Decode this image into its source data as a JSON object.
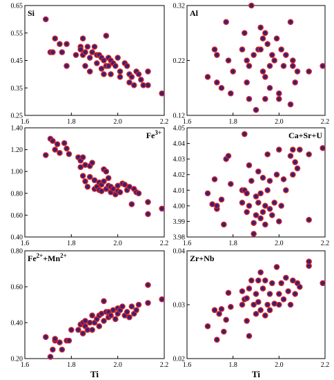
{
  "chart_data": [
    {
      "type": "scatter",
      "name": "Si",
      "label_main": "Si",
      "label_sup": "",
      "label_pos": "top-left",
      "xlim": [
        1.6,
        2.2
      ],
      "ylim": [
        0.25,
        0.65
      ],
      "xticks": [
        "1.6",
        "1.8",
        "2.0",
        "2.2"
      ],
      "yticks": [
        "0.25",
        "0.35",
        "0.45",
        "0.55",
        "0.65"
      ],
      "ytick_values": [
        0.25,
        0.35,
        0.45,
        0.55,
        0.65
      ],
      "xlabel": "",
      "points": [
        [
          1.69,
          0.6
        ],
        [
          1.71,
          0.48
        ],
        [
          1.72,
          0.48
        ],
        [
          1.73,
          0.53
        ],
        [
          1.75,
          0.51
        ],
        [
          1.76,
          0.48
        ],
        [
          1.78,
          0.43
        ],
        [
          1.78,
          0.51
        ],
        [
          1.82,
          0.47
        ],
        [
          1.84,
          0.5
        ],
        [
          1.84,
          0.49
        ],
        [
          1.85,
          0.47
        ],
        [
          1.85,
          0.53
        ],
        [
          1.86,
          0.48
        ],
        [
          1.86,
          0.43
        ],
        [
          1.87,
          0.5
        ],
        [
          1.88,
          0.46
        ],
        [
          1.88,
          0.41
        ],
        [
          1.89,
          0.48
        ],
        [
          1.9,
          0.5
        ],
        [
          1.91,
          0.47
        ],
        [
          1.91,
          0.44
        ],
        [
          1.92,
          0.47
        ],
        [
          1.93,
          0.46
        ],
        [
          1.93,
          0.42
        ],
        [
          1.94,
          0.45
        ],
        [
          1.94,
          0.4
        ],
        [
          1.95,
          0.54
        ],
        [
          1.95,
          0.43
        ],
        [
          1.96,
          0.46
        ],
        [
          1.96,
          0.43
        ],
        [
          1.97,
          0.45
        ],
        [
          1.97,
          0.4
        ],
        [
          1.98,
          0.44
        ],
        [
          1.99,
          0.43
        ],
        [
          2.0,
          0.46
        ],
        [
          2.01,
          0.41
        ],
        [
          2.01,
          0.39
        ],
        [
          2.03,
          0.44
        ],
        [
          2.04,
          0.43
        ],
        [
          2.05,
          0.4
        ],
        [
          2.05,
          0.37
        ],
        [
          2.06,
          0.39
        ],
        [
          2.07,
          0.36
        ],
        [
          2.08,
          0.41
        ],
        [
          2.09,
          0.4
        ],
        [
          2.1,
          0.38
        ],
        [
          2.11,
          0.36
        ],
        [
          2.13,
          0.41
        ],
        [
          2.13,
          0.36
        ],
        [
          2.19,
          0.33
        ]
      ]
    },
    {
      "type": "scatter",
      "name": "Al",
      "label_main": "Al",
      "label_sup": "",
      "label_pos": "top-left",
      "xlim": [
        1.6,
        2.2
      ],
      "ylim": [
        0.12,
        0.32
      ],
      "xticks": [
        "1.6",
        "1.8",
        "2.0",
        "2.2"
      ],
      "yticks": [
        "0.12",
        "0.22",
        "0.32"
      ],
      "ytick_values": [
        0.12,
        0.22,
        0.32
      ],
      "xlabel": "",
      "points": [
        [
          1.69,
          0.19
        ],
        [
          1.72,
          0.24
        ],
        [
          1.73,
          0.23
        ],
        [
          1.73,
          0.18
        ],
        [
          1.75,
          0.17
        ],
        [
          1.77,
          0.29
        ],
        [
          1.78,
          0.22
        ],
        [
          1.79,
          0.16
        ],
        [
          1.8,
          0.2
        ],
        [
          1.84,
          0.24
        ],
        [
          1.85,
          0.27
        ],
        [
          1.86,
          0.22
        ],
        [
          1.86,
          0.18
        ],
        [
          1.87,
          0.21
        ],
        [
          1.87,
          0.15
        ],
        [
          1.88,
          0.32
        ],
        [
          1.89,
          0.23
        ],
        [
          1.9,
          0.13
        ],
        [
          1.91,
          0.24
        ],
        [
          1.92,
          0.28
        ],
        [
          1.92,
          0.24
        ],
        [
          1.93,
          0.26
        ],
        [
          1.93,
          0.2
        ],
        [
          1.94,
          0.27
        ],
        [
          1.94,
          0.19
        ],
        [
          1.94,
          0.15
        ],
        [
          1.95,
          0.25
        ],
        [
          1.96,
          0.21
        ],
        [
          1.96,
          0.17
        ],
        [
          1.97,
          0.23
        ],
        [
          1.98,
          0.22
        ],
        [
          1.99,
          0.26
        ],
        [
          2.0,
          0.16
        ],
        [
          2.0,
          0.15
        ],
        [
          2.01,
          0.24
        ],
        [
          2.02,
          0.21
        ],
        [
          2.03,
          0.23
        ],
        [
          2.05,
          0.14
        ],
        [
          2.05,
          0.29
        ],
        [
          2.06,
          0.22
        ],
        [
          2.06,
          0.21
        ],
        [
          2.07,
          0.18
        ],
        [
          2.08,
          0.2
        ],
        [
          2.13,
          0.2
        ],
        [
          2.19,
          0.21
        ]
      ]
    },
    {
      "type": "scatter",
      "name": "Fe3+",
      "label_main": "Fe",
      "label_sup": "3+",
      "label_pos": "top-right",
      "xlim": [
        1.6,
        2.2
      ],
      "ylim": [
        0.4,
        1.4
      ],
      "xticks": [
        "1.6",
        "1.8",
        "2.0",
        "2.2"
      ],
      "yticks": [
        "0.40",
        "0.60",
        "0.80",
        "1.00",
        "1.20",
        "1.40"
      ],
      "ytick_values": [
        0.4,
        0.6,
        0.8,
        1.0,
        1.2,
        1.4
      ],
      "xlabel": "",
      "points": [
        [
          1.69,
          1.15
        ],
        [
          1.71,
          1.3
        ],
        [
          1.72,
          1.28
        ],
        [
          1.73,
          1.2
        ],
        [
          1.74,
          1.25
        ],
        [
          1.75,
          1.17
        ],
        [
          1.77,
          1.26
        ],
        [
          1.78,
          1.21
        ],
        [
          1.79,
          1.16
        ],
        [
          1.83,
          1.13
        ],
        [
          1.84,
          1.1
        ],
        [
          1.84,
          1.04
        ],
        [
          1.85,
          1.13
        ],
        [
          1.85,
          0.96
        ],
        [
          1.86,
          1.06
        ],
        [
          1.86,
          0.91
        ],
        [
          1.87,
          0.86
        ],
        [
          1.88,
          1.05
        ],
        [
          1.88,
          0.95
        ],
        [
          1.89,
          1.08
        ],
        [
          1.9,
          0.92
        ],
        [
          1.9,
          0.84
        ],
        [
          1.91,
          0.86
        ],
        [
          1.92,
          0.9
        ],
        [
          1.92,
          0.83
        ],
        [
          1.93,
          0.88
        ],
        [
          1.93,
          0.82
        ],
        [
          1.94,
          1.02
        ],
        [
          1.94,
          0.91
        ],
        [
          1.95,
          1.0
        ],
        [
          1.95,
          0.84
        ],
        [
          1.96,
          0.94
        ],
        [
          1.96,
          0.87
        ],
        [
          1.97,
          0.86
        ],
        [
          1.97,
          0.81
        ],
        [
          1.98,
          0.84
        ],
        [
          1.99,
          0.79
        ],
        [
          2.0,
          0.87
        ],
        [
          2.0,
          0.82
        ],
        [
          2.01,
          0.81
        ],
        [
          2.02,
          0.89
        ],
        [
          2.03,
          0.88
        ],
        [
          2.04,
          0.83
        ],
        [
          2.05,
          0.86
        ],
        [
          2.06,
          0.7
        ],
        [
          2.07,
          0.84
        ],
        [
          2.08,
          0.81
        ],
        [
          2.09,
          0.8
        ],
        [
          2.13,
          0.72
        ],
        [
          2.13,
          0.61
        ],
        [
          2.19,
          0.66
        ]
      ]
    },
    {
      "type": "scatter",
      "name": "Ca+Sr+U",
      "label_main": "Ca+Sr+U",
      "label_sup": "",
      "label_pos": "top-right",
      "xlim": [
        1.6,
        2.2
      ],
      "ylim": [
        3.98,
        4.05
      ],
      "xticks": [
        "1.6",
        "1.8",
        "2.0",
        "2.2"
      ],
      "yticks": [
        "3.98",
        "3.99",
        "4.00",
        "4.01",
        "4.02",
        "4.03",
        "4.04",
        "4.05"
      ],
      "ytick_values": [
        3.98,
        3.99,
        4.0,
        4.01,
        4.02,
        4.03,
        4.04,
        4.05
      ],
      "xlabel": "",
      "points": [
        [
          1.69,
          4.008
        ],
        [
          1.71,
          4.001
        ],
        [
          1.72,
          4.017
        ],
        [
          1.73,
          3.998
        ],
        [
          1.73,
          4.0
        ],
        [
          1.75,
          4.004
        ],
        [
          1.76,
          3.988
        ],
        [
          1.77,
          4.03
        ],
        [
          1.78,
          4.032
        ],
        [
          1.79,
          4.014
        ],
        [
          1.84,
          4.01
        ],
        [
          1.84,
          4.002
        ],
        [
          1.85,
          4.046
        ],
        [
          1.85,
          4.01
        ],
        [
          1.86,
          4.008
        ],
        [
          1.86,
          3.996
        ],
        [
          1.87,
          4.0
        ],
        [
          1.87,
          4.026
        ],
        [
          1.88,
          4.016
        ],
        [
          1.89,
          3.982
        ],
        [
          1.89,
          3.989
        ],
        [
          1.9,
          4.006
        ],
        [
          1.9,
          3.994
        ],
        [
          1.91,
          4.022
        ],
        [
          1.91,
          4.002
        ],
        [
          1.92,
          4.008
        ],
        [
          1.92,
          3.992
        ],
        [
          1.93,
          3.996
        ],
        [
          1.93,
          4.018
        ],
        [
          1.94,
          4.0
        ],
        [
          1.94,
          3.988
        ],
        [
          1.95,
          4.033
        ],
        [
          1.95,
          4.01
        ],
        [
          1.96,
          3.998
        ],
        [
          1.96,
          4.016
        ],
        [
          1.97,
          3.994
        ],
        [
          1.98,
          4.002
        ],
        [
          1.99,
          4.02
        ],
        [
          2.0,
          3.99
        ],
        [
          2.0,
          4.036
        ],
        [
          2.01,
          4.0
        ],
        [
          2.02,
          4.017
        ],
        [
          2.03,
          4.01
        ],
        [
          2.05,
          4.032
        ],
        [
          2.06,
          4.036
        ],
        [
          2.06,
          4.02
        ],
        [
          2.07,
          4.028
        ],
        [
          2.08,
          4.024
        ],
        [
          2.09,
          4.036
        ],
        [
          2.13,
          4.033
        ],
        [
          2.13,
          3.991
        ],
        [
          2.19,
          4.037
        ]
      ]
    },
    {
      "type": "scatter",
      "name": "Fe2++Mn2+",
      "label_main": "Fe",
      "label_sup": "2+",
      "label_main2": "+Mn",
      "label_sup2": "2+",
      "label_pos": "top-left",
      "xlim": [
        1.6,
        2.2
      ],
      "ylim": [
        0.2,
        0.8
      ],
      "xticks": [
        "1.6",
        "1.8",
        "2.0",
        "2.2"
      ],
      "yticks": [
        "0.20",
        "0.40",
        "0.60",
        "0.80"
      ],
      "ytick_values": [
        0.2,
        0.4,
        0.6,
        0.8
      ],
      "xlabel": "Ti",
      "points": [
        [
          1.69,
          0.32
        ],
        [
          1.71,
          0.21
        ],
        [
          1.72,
          0.25
        ],
        [
          1.73,
          0.3
        ],
        [
          1.73,
          0.31
        ],
        [
          1.75,
          0.29
        ],
        [
          1.76,
          0.25
        ],
        [
          1.78,
          0.3
        ],
        [
          1.79,
          0.3
        ],
        [
          1.8,
          0.36
        ],
        [
          1.83,
          0.36
        ],
        [
          1.84,
          0.39
        ],
        [
          1.85,
          0.34
        ],
        [
          1.85,
          0.4
        ],
        [
          1.86,
          0.38
        ],
        [
          1.86,
          0.41
        ],
        [
          1.87,
          0.36
        ],
        [
          1.88,
          0.4
        ],
        [
          1.89,
          0.36
        ],
        [
          1.89,
          0.44
        ],
        [
          1.9,
          0.4
        ],
        [
          1.91,
          0.42
        ],
        [
          1.92,
          0.44
        ],
        [
          1.92,
          0.38
        ],
        [
          1.93,
          0.45
        ],
        [
          1.94,
          0.41
        ],
        [
          1.94,
          0.52
        ],
        [
          1.95,
          0.46
        ],
        [
          1.96,
          0.43
        ],
        [
          1.96,
          0.46
        ],
        [
          1.97,
          0.44
        ],
        [
          1.98,
          0.47
        ],
        [
          1.99,
          0.42
        ],
        [
          2.0,
          0.48
        ],
        [
          2.0,
          0.45
        ],
        [
          2.01,
          0.47
        ],
        [
          2.02,
          0.49
        ],
        [
          2.03,
          0.44
        ],
        [
          2.04,
          0.46
        ],
        [
          2.05,
          0.43
        ],
        [
          2.06,
          0.49
        ],
        [
          2.07,
          0.45
        ],
        [
          2.08,
          0.47
        ],
        [
          2.09,
          0.5
        ],
        [
          2.13,
          0.51
        ],
        [
          2.13,
          0.61
        ],
        [
          2.19,
          0.53
        ]
      ]
    },
    {
      "type": "scatter",
      "name": "Zr+Nb",
      "label_main": "Zr+Nb",
      "label_sup": "",
      "label_pos": "top-left",
      "xlim": [
        1.6,
        2.2
      ],
      "ylim": [
        0.02,
        0.04
      ],
      "xticks": [
        "1.6",
        "1.8",
        "2.0",
        "2.2"
      ],
      "yticks": [
        "0.02",
        "0.03",
        "0.04"
      ],
      "ytick_values": [
        0.02,
        0.03,
        0.04
      ],
      "xlabel": "Ti",
      "points": [
        [
          1.69,
          0.026
        ],
        [
          1.72,
          0.029
        ],
        [
          1.73,
          0.0235
        ],
        [
          1.74,
          0.0283
        ],
        [
          1.75,
          0.0292
        ],
        [
          1.76,
          0.025
        ],
        [
          1.77,
          0.0272
        ],
        [
          1.78,
          0.0322
        ],
        [
          1.79,
          0.0296
        ],
        [
          1.84,
          0.0325
        ],
        [
          1.84,
          0.03
        ],
        [
          1.85,
          0.031
        ],
        [
          1.86,
          0.0312
        ],
        [
          1.86,
          0.027
        ],
        [
          1.87,
          0.033
        ],
        [
          1.87,
          0.0242
        ],
        [
          1.88,
          0.0345
        ],
        [
          1.89,
          0.03
        ],
        [
          1.9,
          0.032
        ],
        [
          1.9,
          0.0283
        ],
        [
          1.91,
          0.0345
        ],
        [
          1.91,
          0.0305
        ],
        [
          1.92,
          0.036
        ],
        [
          1.92,
          0.029
        ],
        [
          1.93,
          0.033
        ],
        [
          1.94,
          0.028
        ],
        [
          1.94,
          0.0345
        ],
        [
          1.95,
          0.03
        ],
        [
          1.96,
          0.032
        ],
        [
          1.96,
          0.029
        ],
        [
          1.97,
          0.034
        ],
        [
          1.98,
          0.0302
        ],
        [
          1.99,
          0.037
        ],
        [
          2.0,
          0.03
        ],
        [
          2.0,
          0.032
        ],
        [
          2.01,
          0.034
        ],
        [
          2.02,
          0.031
        ],
        [
          2.03,
          0.035
        ],
        [
          2.04,
          0.0325
        ],
        [
          2.05,
          0.03
        ],
        [
          2.06,
          0.0345
        ],
        [
          2.07,
          0.032
        ],
        [
          2.08,
          0.034
        ],
        [
          2.09,
          0.0333
        ],
        [
          2.13,
          0.0372
        ],
        [
          2.13,
          0.038
        ],
        [
          2.19,
          0.034
        ]
      ]
    }
  ]
}
